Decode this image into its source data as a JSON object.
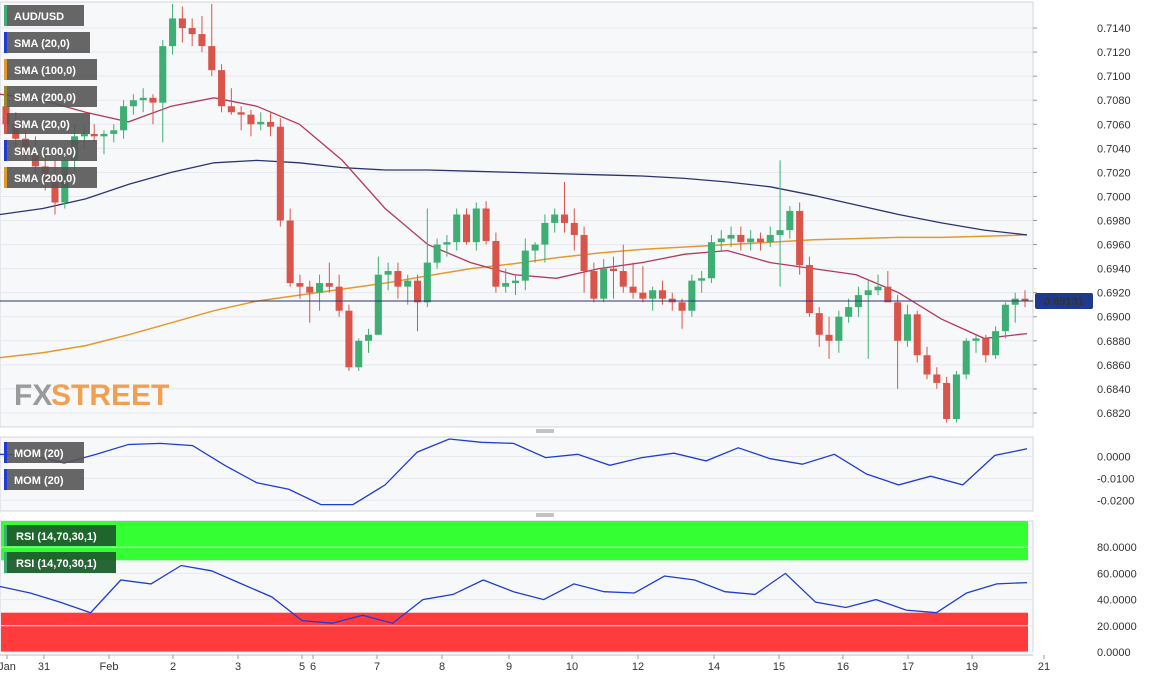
{
  "colors": {
    "background": "#f7f8fa",
    "grid": "#e6e8ee",
    "up": "#3fae74",
    "down": "#d9554b",
    "sma_blue": "#2c3470",
    "sma_orange": "#e39a2c",
    "sma_red": "#b5385a",
    "mom": "#1f3bd6",
    "rsi": "#1f3bd6",
    "overbought": "#33ff33",
    "oversold": "#ff3b3b",
    "price_line": "#2c3470",
    "price_badge": "#1e3a8a",
    "logo_gray": "#9a9a9a",
    "logo_orange": "#f0a050"
  },
  "legend_main": [
    {
      "label": "AUD/USD",
      "color": "#3fae74"
    },
    {
      "label": "SMA (20,0)",
      "color": "#1f3bd6"
    },
    {
      "label": "SMA (100,0)",
      "color": "#e39a2c"
    },
    {
      "label": "SMA (200,0)",
      "color": "#9a8a2c"
    },
    {
      "label": "SMA (20,0)",
      "color": "#d9554b"
    },
    {
      "label": "SMA (100,0)",
      "color": "#1f3bd6"
    },
    {
      "label": "SMA (200,0)",
      "color": "#e39a2c"
    }
  ],
  "legend_mom": [
    {
      "label": "MOM (20)",
      "color": "#1f3bd6"
    },
    {
      "label": "MOM (20)",
      "color": "#1f3bd6"
    }
  ],
  "legend_rsi": [
    {
      "label": "RSI (14,70,30,1)",
      "color": "#3fae74"
    },
    {
      "label": "RSI (14,70,30,1)",
      "color": "#3fae74"
    }
  ],
  "logo": {
    "part1": "FX",
    "part2": "STREET"
  },
  "date_labels": [
    "Jan",
    "31",
    "Feb",
    "2",
    "3",
    "5",
    "6",
    "7",
    "8",
    "9",
    "10",
    "12",
    "13",
    "14",
    "15",
    "16",
    "17",
    "19",
    "21"
  ],
  "chart_data": [
    {
      "type": "candlestick",
      "title": "AUD/USD",
      "ylim": [
        0.681,
        0.716
      ],
      "y_ticks": [
        "0.6820",
        "0.6840",
        "0.6860",
        "0.6880",
        "0.6900",
        "0.6920",
        "0.6940",
        "0.6960",
        "0.6980",
        "0.7000",
        "0.7020",
        "0.7040",
        "0.7060",
        "0.7080",
        "0.7100",
        "0.7120",
        "0.7140"
      ],
      "current_price": "0.69131",
      "candles": [
        {
          "o": 0.7075,
          "h": 0.7082,
          "l": 0.7055,
          "c": 0.706
        },
        {
          "o": 0.706,
          "h": 0.707,
          "l": 0.704,
          "c": 0.7048
        },
        {
          "o": 0.7048,
          "h": 0.7055,
          "l": 0.703,
          "c": 0.7035
        },
        {
          "o": 0.7035,
          "h": 0.705,
          "l": 0.7018,
          "c": 0.7025
        },
        {
          "o": 0.7025,
          "h": 0.704,
          "l": 0.7005,
          "c": 0.7012
        },
        {
          "o": 0.7012,
          "h": 0.703,
          "l": 0.6985,
          "c": 0.6995
        },
        {
          "o": 0.6995,
          "h": 0.704,
          "l": 0.699,
          "c": 0.703
        },
        {
          "o": 0.703,
          "h": 0.706,
          "l": 0.702,
          "c": 0.705
        },
        {
          "o": 0.705,
          "h": 0.7058,
          "l": 0.704,
          "c": 0.7052
        },
        {
          "o": 0.7052,
          "h": 0.706,
          "l": 0.7045,
          "c": 0.705
        },
        {
          "o": 0.705,
          "h": 0.7055,
          "l": 0.7035,
          "c": 0.7052
        },
        {
          "o": 0.7052,
          "h": 0.706,
          "l": 0.7045,
          "c": 0.7055
        },
        {
          "o": 0.7055,
          "h": 0.708,
          "l": 0.7048,
          "c": 0.7075
        },
        {
          "o": 0.7075,
          "h": 0.7085,
          "l": 0.7068,
          "c": 0.708
        },
        {
          "o": 0.708,
          "h": 0.709,
          "l": 0.707,
          "c": 0.7082
        },
        {
          "o": 0.7082,
          "h": 0.7085,
          "l": 0.706,
          "c": 0.7078
        },
        {
          "o": 0.7078,
          "h": 0.713,
          "l": 0.7045,
          "c": 0.7125
        },
        {
          "o": 0.7125,
          "h": 0.716,
          "l": 0.7118,
          "c": 0.7148
        },
        {
          "o": 0.7148,
          "h": 0.7158,
          "l": 0.7128,
          "c": 0.714
        },
        {
          "o": 0.714,
          "h": 0.7148,
          "l": 0.7125,
          "c": 0.7135
        },
        {
          "o": 0.7135,
          "h": 0.715,
          "l": 0.712,
          "c": 0.7125
        },
        {
          "o": 0.7125,
          "h": 0.716,
          "l": 0.71,
          "c": 0.7105
        },
        {
          "o": 0.7105,
          "h": 0.711,
          "l": 0.707,
          "c": 0.7075
        },
        {
          "o": 0.7075,
          "h": 0.709,
          "l": 0.7068,
          "c": 0.707
        },
        {
          "o": 0.707,
          "h": 0.7075,
          "l": 0.7055,
          "c": 0.7068
        },
        {
          "o": 0.7068,
          "h": 0.7072,
          "l": 0.705,
          "c": 0.706
        },
        {
          "o": 0.706,
          "h": 0.707,
          "l": 0.7055,
          "c": 0.7062
        },
        {
          "o": 0.7062,
          "h": 0.707,
          "l": 0.705,
          "c": 0.7058
        },
        {
          "o": 0.7058,
          "h": 0.7065,
          "l": 0.6975,
          "c": 0.698
        },
        {
          "o": 0.698,
          "h": 0.699,
          "l": 0.6925,
          "c": 0.6928
        },
        {
          "o": 0.6928,
          "h": 0.6935,
          "l": 0.6915,
          "c": 0.6925
        },
        {
          "o": 0.6925,
          "h": 0.693,
          "l": 0.6895,
          "c": 0.692
        },
        {
          "o": 0.692,
          "h": 0.6935,
          "l": 0.6905,
          "c": 0.6928
        },
        {
          "o": 0.6928,
          "h": 0.6945,
          "l": 0.692,
          "c": 0.6925
        },
        {
          "o": 0.6925,
          "h": 0.6935,
          "l": 0.69,
          "c": 0.6905
        },
        {
          "o": 0.6905,
          "h": 0.691,
          "l": 0.6855,
          "c": 0.6858
        },
        {
          "o": 0.6858,
          "h": 0.6882,
          "l": 0.6855,
          "c": 0.688
        },
        {
          "o": 0.688,
          "h": 0.689,
          "l": 0.687,
          "c": 0.6885
        },
        {
          "o": 0.6885,
          "h": 0.695,
          "l": 0.6885,
          "c": 0.6935
        },
        {
          "o": 0.6935,
          "h": 0.6945,
          "l": 0.6922,
          "c": 0.6938
        },
        {
          "o": 0.6938,
          "h": 0.6945,
          "l": 0.6915,
          "c": 0.6925
        },
        {
          "o": 0.6925,
          "h": 0.6935,
          "l": 0.691,
          "c": 0.693
        },
        {
          "o": 0.693,
          "h": 0.6935,
          "l": 0.6888,
          "c": 0.6912
        },
        {
          "o": 0.6912,
          "h": 0.699,
          "l": 0.6908,
          "c": 0.6945
        },
        {
          "o": 0.6945,
          "h": 0.6965,
          "l": 0.694,
          "c": 0.696
        },
        {
          "o": 0.696,
          "h": 0.6968,
          "l": 0.695,
          "c": 0.6962
        },
        {
          "o": 0.6962,
          "h": 0.699,
          "l": 0.6955,
          "c": 0.6985
        },
        {
          "o": 0.6985,
          "h": 0.699,
          "l": 0.696,
          "c": 0.6962
        },
        {
          "o": 0.6962,
          "h": 0.6995,
          "l": 0.6955,
          "c": 0.699
        },
        {
          "o": 0.699,
          "h": 0.6996,
          "l": 0.696,
          "c": 0.6963
        },
        {
          "o": 0.6963,
          "h": 0.697,
          "l": 0.692,
          "c": 0.6925
        },
        {
          "o": 0.6925,
          "h": 0.694,
          "l": 0.692,
          "c": 0.6928
        },
        {
          "o": 0.6928,
          "h": 0.6935,
          "l": 0.6918,
          "c": 0.693
        },
        {
          "o": 0.693,
          "h": 0.6965,
          "l": 0.6922,
          "c": 0.6955
        },
        {
          "o": 0.6955,
          "h": 0.6962,
          "l": 0.6945,
          "c": 0.696
        },
        {
          "o": 0.696,
          "h": 0.6985,
          "l": 0.6945,
          "c": 0.6978
        },
        {
          "o": 0.6978,
          "h": 0.699,
          "l": 0.697,
          "c": 0.6985
        },
        {
          "o": 0.6985,
          "h": 0.7012,
          "l": 0.697,
          "c": 0.6978
        },
        {
          "o": 0.6978,
          "h": 0.699,
          "l": 0.6955,
          "c": 0.6968
        },
        {
          "o": 0.6968,
          "h": 0.6975,
          "l": 0.692,
          "c": 0.6938
        },
        {
          "o": 0.6938,
          "h": 0.6945,
          "l": 0.6912,
          "c": 0.6915
        },
        {
          "o": 0.6915,
          "h": 0.6948,
          "l": 0.6912,
          "c": 0.694
        },
        {
          "o": 0.694,
          "h": 0.695,
          "l": 0.6915,
          "c": 0.6938
        },
        {
          "o": 0.6938,
          "h": 0.696,
          "l": 0.692,
          "c": 0.6925
        },
        {
          "o": 0.6925,
          "h": 0.6945,
          "l": 0.6915,
          "c": 0.692
        },
        {
          "o": 0.692,
          "h": 0.6942,
          "l": 0.6912,
          "c": 0.6915
        },
        {
          "o": 0.6915,
          "h": 0.6925,
          "l": 0.6905,
          "c": 0.6922
        },
        {
          "o": 0.6922,
          "h": 0.693,
          "l": 0.691,
          "c": 0.6915
        },
        {
          "o": 0.6915,
          "h": 0.692,
          "l": 0.6905,
          "c": 0.6912
        },
        {
          "o": 0.6912,
          "h": 0.6915,
          "l": 0.689,
          "c": 0.6905
        },
        {
          "o": 0.6905,
          "h": 0.6935,
          "l": 0.69,
          "c": 0.693
        },
        {
          "o": 0.693,
          "h": 0.6938,
          "l": 0.692,
          "c": 0.6932
        },
        {
          "o": 0.6932,
          "h": 0.6968,
          "l": 0.6928,
          "c": 0.6962
        },
        {
          "o": 0.6962,
          "h": 0.6972,
          "l": 0.6955,
          "c": 0.6965
        },
        {
          "o": 0.6965,
          "h": 0.6975,
          "l": 0.6958,
          "c": 0.6968
        },
        {
          "o": 0.6968,
          "h": 0.6975,
          "l": 0.6955,
          "c": 0.6962
        },
        {
          "o": 0.6962,
          "h": 0.6972,
          "l": 0.6955,
          "c": 0.6965
        },
        {
          "o": 0.6965,
          "h": 0.697,
          "l": 0.6955,
          "c": 0.6962
        },
        {
          "o": 0.6962,
          "h": 0.6975,
          "l": 0.6958,
          "c": 0.6968
        },
        {
          "o": 0.6968,
          "h": 0.703,
          "l": 0.6925,
          "c": 0.6972
        },
        {
          "o": 0.6972,
          "h": 0.6992,
          "l": 0.6965,
          "c": 0.6988
        },
        {
          "o": 0.6988,
          "h": 0.6995,
          "l": 0.6935,
          "c": 0.6943
        },
        {
          "o": 0.6943,
          "h": 0.695,
          "l": 0.69,
          "c": 0.6903
        },
        {
          "o": 0.6903,
          "h": 0.6908,
          "l": 0.6875,
          "c": 0.6885
        },
        {
          "o": 0.6885,
          "h": 0.69,
          "l": 0.6865,
          "c": 0.688
        },
        {
          "o": 0.688,
          "h": 0.6905,
          "l": 0.687,
          "c": 0.69
        },
        {
          "o": 0.69,
          "h": 0.6915,
          "l": 0.6895,
          "c": 0.6908
        },
        {
          "o": 0.6908,
          "h": 0.6925,
          "l": 0.69,
          "c": 0.6918
        },
        {
          "o": 0.6918,
          "h": 0.693,
          "l": 0.6865,
          "c": 0.6922
        },
        {
          "o": 0.6922,
          "h": 0.6935,
          "l": 0.6918,
          "c": 0.6925
        },
        {
          "o": 0.6925,
          "h": 0.6938,
          "l": 0.6915,
          "c": 0.6912
        },
        {
          "o": 0.6912,
          "h": 0.6918,
          "l": 0.684,
          "c": 0.688
        },
        {
          "o": 0.688,
          "h": 0.691,
          "l": 0.6875,
          "c": 0.6902
        },
        {
          "o": 0.6902,
          "h": 0.6905,
          "l": 0.6862,
          "c": 0.6868
        },
        {
          "o": 0.6868,
          "h": 0.6875,
          "l": 0.6848,
          "c": 0.6852
        },
        {
          "o": 0.6852,
          "h": 0.6858,
          "l": 0.684,
          "c": 0.6845
        },
        {
          "o": 0.6845,
          "h": 0.685,
          "l": 0.6812,
          "c": 0.6815
        },
        {
          "o": 0.6815,
          "h": 0.6855,
          "l": 0.6812,
          "c": 0.6852
        },
        {
          "o": 0.6852,
          "h": 0.6882,
          "l": 0.6848,
          "c": 0.688
        },
        {
          "o": 0.688,
          "h": 0.6885,
          "l": 0.687,
          "c": 0.6882
        },
        {
          "o": 0.6882,
          "h": 0.6885,
          "l": 0.6862,
          "c": 0.6868
        },
        {
          "o": 0.6868,
          "h": 0.6892,
          "l": 0.6865,
          "c": 0.6888
        },
        {
          "o": 0.6888,
          "h": 0.6912,
          "l": 0.6882,
          "c": 0.691
        },
        {
          "o": 0.691,
          "h": 0.692,
          "l": 0.6895,
          "c": 0.6915
        },
        {
          "o": 0.6915,
          "h": 0.6922,
          "l": 0.6908,
          "c": 0.6913
        }
      ],
      "sma_blue": [
        0.6985,
        0.699,
        0.6998,
        0.701,
        0.702,
        0.7028,
        0.703,
        0.7028,
        0.7024,
        0.7022,
        0.7022,
        0.7021,
        0.702,
        0.7019,
        0.7018,
        0.7017,
        0.7015,
        0.7012,
        0.7008,
        0.7001,
        0.6993,
        0.6985,
        0.6978,
        0.6972,
        0.6968
      ],
      "sma_orange": [
        0.6866,
        0.687,
        0.6876,
        0.6885,
        0.6895,
        0.6905,
        0.6913,
        0.6918,
        0.6923,
        0.6928,
        0.6934,
        0.694,
        0.6944,
        0.6949,
        0.6953,
        0.6956,
        0.6958,
        0.696,
        0.6962,
        0.6964,
        0.6965,
        0.6966,
        0.6966,
        0.6967,
        0.6968
      ],
      "sma_red": [
        0.7085,
        0.708,
        0.707,
        0.7062,
        0.7075,
        0.7082,
        0.7075,
        0.706,
        0.703,
        0.699,
        0.696,
        0.6945,
        0.6935,
        0.6932,
        0.694,
        0.6945,
        0.6952,
        0.6955,
        0.6945,
        0.694,
        0.6935,
        0.692,
        0.6898,
        0.6882,
        0.6886
      ]
    },
    {
      "type": "line",
      "title": "MOM (20)",
      "ylim": [
        -0.024,
        0.008
      ],
      "y_ticks": [
        "-0.0200",
        "-0.0100",
        "0.0000"
      ],
      "values": [
        0.001,
        0.0005,
        -0.003,
        0.001,
        0.0055,
        0.006,
        0.005,
        -0.004,
        -0.012,
        -0.015,
        -0.022,
        -0.022,
        -0.013,
        0.002,
        0.008,
        0.0065,
        0.006,
        -0.0005,
        0.001,
        -0.004,
        -0.0005,
        0.0015,
        -0.002,
        0.004,
        -0.001,
        -0.0035,
        0.001,
        -0.008,
        -0.013,
        -0.009,
        -0.013,
        0.0005,
        0.0035
      ]
    },
    {
      "type": "line",
      "title": "RSI (14,70,30,1)",
      "ylim": [
        0,
        100
      ],
      "y_ticks": [
        "0.0000",
        "20.0000",
        "40.0000",
        "60.0000",
        "80.0000"
      ],
      "overbought": 70,
      "oversold": 30,
      "values": [
        50,
        45,
        38,
        30,
        55,
        52,
        66,
        62,
        52,
        42,
        24,
        22,
        28,
        22,
        40,
        44,
        55,
        46,
        40,
        52,
        46,
        45,
        58,
        55,
        46,
        44,
        60,
        38,
        34,
        40,
        32,
        30,
        45,
        52,
        53
      ]
    }
  ]
}
